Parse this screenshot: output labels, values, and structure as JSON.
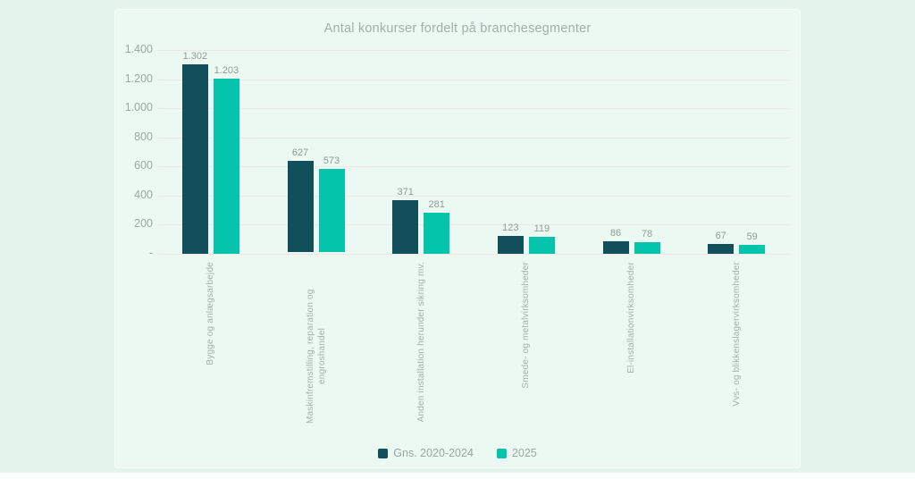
{
  "colors": {
    "page_background": "#e4f3ec",
    "card_background": "#ecf8f2",
    "gridline": "#f0e6e4",
    "title_text": "#9fb0ac",
    "axis_text": "#99a7a3",
    "value_text": "#8e9c98",
    "category_text": "#a2b0ac",
    "series_dark_teal": "#11505a",
    "series_turquoise": "#04c4ac"
  },
  "chart_data": {
    "type": "bar",
    "title": "Antal konkurser fordelt på branchesegmenter",
    "categories": [
      "Bygge og anlægsarbejde",
      "Maskinfremstilling, reparation og engroshandel",
      "Anden installation herunder sikring mv.",
      "Smede- og metalvirksomheder",
      "El-installationvirksomheder",
      "Vvs- og blikkenslagervirksomheder"
    ],
    "series": [
      {
        "name": "Gns. 2020-2024",
        "color": "#11505a",
        "values": [
          1302,
          627,
          371,
          123,
          86,
          67
        ],
        "value_labels": [
          "1.302",
          "627",
          "371",
          "123",
          "86",
          "67"
        ]
      },
      {
        "name": "2025",
        "color": "#04c4ac",
        "values": [
          1203,
          573,
          281,
          119,
          78,
          59
        ],
        "value_labels": [
          "1.203",
          "573",
          "281",
          "119",
          "78",
          "59"
        ]
      }
    ],
    "ylim": [
      0,
      1400
    ],
    "ytick_interval": 200,
    "yticks": [
      {
        "value": 1400,
        "label": "1.400"
      },
      {
        "value": 1200,
        "label": "1.200"
      },
      {
        "value": 1000,
        "label": "1.000"
      },
      {
        "value": 800,
        "label": "800"
      },
      {
        "value": 600,
        "label": "600"
      },
      {
        "value": 400,
        "label": "400"
      },
      {
        "value": 200,
        "label": "200"
      },
      {
        "value": 0,
        "label": "-"
      }
    ],
    "grid": true,
    "legend_position": "bottom"
  }
}
